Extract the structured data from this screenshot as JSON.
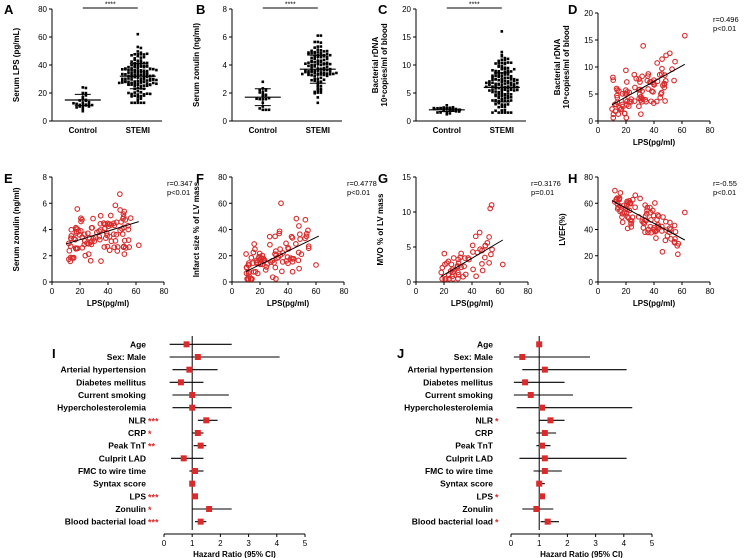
{
  "figure": {
    "colors": {
      "point": "#d92b2b",
      "line": "#000000",
      "bg": "#ffffff"
    }
  },
  "chart_data": [
    {
      "id": "A",
      "type": "scatter",
      "subtype": "dot-plot",
      "ylabel": "Serum LPS (pg/mL)",
      "ylim": [
        0,
        80
      ],
      "yticks": [
        0,
        20,
        40,
        60,
        80
      ],
      "categories": [
        "Control",
        "STEMI"
      ],
      "group_summary": [
        {
          "name": "Control",
          "n_points": 26,
          "mean": 15,
          "sd": 4,
          "min": 7,
          "max": 24
        },
        {
          "name": "STEMI",
          "n_points": 140,
          "mean": 32,
          "sd": 9,
          "min": 13,
          "max": 62
        }
      ],
      "significance": "****"
    },
    {
      "id": "B",
      "type": "scatter",
      "subtype": "dot-plot",
      "ylabel": "Serum zonulin (ng/ml)",
      "ylim": [
        0,
        8
      ],
      "yticks": [
        0,
        2,
        4,
        6,
        8
      ],
      "categories": [
        "Control",
        "STEMI"
      ],
      "group_summary": [
        {
          "name": "Control",
          "n_points": 22,
          "mean": 1.7,
          "sd": 0.6,
          "min": 0.8,
          "max": 2.8
        },
        {
          "name": "STEMI",
          "n_points": 110,
          "mean": 3.7,
          "sd": 1.0,
          "min": 1.3,
          "max": 6.1
        }
      ],
      "significance": "****"
    },
    {
      "id": "C",
      "type": "scatter",
      "subtype": "dot-plot",
      "ylabel_line1": "Bacterial rDNA",
      "ylabel_line2": "10⁶copies/ml of blood",
      "ylim": [
        0,
        20
      ],
      "yticks": [
        0,
        5,
        10,
        15,
        20
      ],
      "categories": [
        "Control",
        "STEMI"
      ],
      "group_summary": [
        {
          "name": "Control",
          "n_points": 26,
          "mean": 2.0,
          "sd": 0.3,
          "min": 1.2,
          "max": 2.8
        },
        {
          "name": "STEMI",
          "n_points": 140,
          "mean": 6.0,
          "sd": 2.6,
          "min": 1.5,
          "max": 16
        }
      ],
      "significance": "****"
    },
    {
      "id": "D",
      "type": "scatter",
      "xlabel": "LPS(pg/ml)",
      "xlim": [
        0,
        80
      ],
      "xticks": [
        0,
        20,
        40,
        60,
        80
      ],
      "ylabel_line1": "Bacterial rDNA",
      "ylabel_line2": "10⁶copies/ml of blood",
      "ylim": [
        0,
        20
      ],
      "yticks": [
        0,
        5,
        10,
        15,
        20
      ],
      "r_text": "r=0.496",
      "p_text": "p<0.01",
      "trend": {
        "x0": 10,
        "y0": 3.0,
        "x1": 62,
        "y1": 10.5
      },
      "cloud": {
        "n": 95,
        "xmin": 10,
        "xmax": 55,
        "noise": 2.4
      },
      "extra_points": [
        {
          "x": 62,
          "y": 15.8
        },
        {
          "x": 55,
          "y": 11
        }
      ]
    },
    {
      "id": "E",
      "type": "scatter",
      "xlabel": "LPS(pg/ml)",
      "xlim": [
        0,
        80
      ],
      "xticks": [
        0,
        20,
        40,
        60,
        80
      ],
      "ylabel": "Serum zonulin (ng/ml)",
      "ylim": [
        0,
        8
      ],
      "yticks": [
        0,
        2,
        4,
        6,
        8
      ],
      "r_text": "r=0.347",
      "p_text": "p<0.01",
      "trend": {
        "x0": 10,
        "y0": 2.9,
        "x1": 62,
        "y1": 4.6
      },
      "cloud": {
        "n": 110,
        "xmin": 12,
        "xmax": 58,
        "noise": 1.0
      },
      "extra_points": [
        {
          "x": 62,
          "y": 2.8
        }
      ]
    },
    {
      "id": "F",
      "type": "scatter",
      "xlabel": "LPS(pg/ml)",
      "xlim": [
        0,
        80
      ],
      "xticks": [
        0,
        20,
        40,
        60,
        80
      ],
      "ylabel": "Infarct size % of LV mass",
      "ylim": [
        0,
        80
      ],
      "yticks": [
        0,
        20,
        40,
        60,
        80
      ],
      "r_text": "r=0.4778",
      "p_text": "p<0.01",
      "trend": {
        "x0": 10,
        "y0": 8,
        "x1": 62,
        "y1": 35
      },
      "cloud": {
        "n": 95,
        "xmin": 10,
        "xmax": 55,
        "noise": 10
      },
      "extra_points": [
        {
          "x": 35,
          "y": 60
        },
        {
          "x": 60,
          "y": 13
        }
      ]
    },
    {
      "id": "G",
      "type": "scatter",
      "xlabel": "LPS(pg/ml)",
      "xlim": [
        0,
        80
      ],
      "xticks": [
        0,
        20,
        40,
        60,
        80
      ],
      "ylabel": "MVO % of LV mass",
      "ylim": [
        0,
        15
      ],
      "yticks": [
        0,
        5,
        10,
        15
      ],
      "r_text": "r=0.3176",
      "p_text": "p=0.01",
      "trend": {
        "x0": 18,
        "y0": 0.8,
        "x1": 62,
        "y1": 6.0
      },
      "cloud": {
        "n": 55,
        "xmin": 18,
        "xmax": 55,
        "noise": 1.3
      },
      "extra_points": [
        {
          "x": 53,
          "y": 10.5
        },
        {
          "x": 54,
          "y": 11
        },
        {
          "x": 62,
          "y": 2.5
        }
      ]
    },
    {
      "id": "H",
      "type": "scatter",
      "xlabel": "LPS(pg/ml)",
      "xlim": [
        0,
        80
      ],
      "xticks": [
        0,
        20,
        40,
        60,
        80
      ],
      "ylabel": "LVEF(%)",
      "ylim": [
        0,
        80
      ],
      "yticks": [
        0,
        20,
        40,
        60,
        80
      ],
      "r_text": "r=-0.55",
      "p_text": "p<0.01",
      "trend": {
        "x0": 10,
        "y0": 62,
        "x1": 62,
        "y1": 32
      },
      "cloud": {
        "n": 100,
        "xmin": 12,
        "xmax": 58,
        "noise": 7
      },
      "extra_points": [
        {
          "x": 62,
          "y": 53
        }
      ]
    },
    {
      "id": "I",
      "type": "forest",
      "xlabel": "Hazard Ratio (95% CI)",
      "xlim": [
        0,
        5
      ],
      "xticks": [
        0,
        1,
        2,
        3,
        4,
        5
      ],
      "ref": 1,
      "rows": [
        {
          "label": "Age",
          "hr": 0.8,
          "lo": 0.2,
          "hi": 2.4,
          "stars": ""
        },
        {
          "label": "Sex: Male",
          "hr": 1.2,
          "lo": 0.2,
          "hi": 4.1,
          "stars": ""
        },
        {
          "label": "Arterial hypertension",
          "hr": 0.9,
          "lo": 0.3,
          "hi": 1.9,
          "stars": ""
        },
        {
          "label": "Diabetes mellitus",
          "hr": 0.6,
          "lo": 0.2,
          "hi": 1.4,
          "stars": ""
        },
        {
          "label": "Current smoking",
          "hr": 1.0,
          "lo": 0.3,
          "hi": 2.3,
          "stars": ""
        },
        {
          "label": "Hypercholesterolemia",
          "hr": 1.0,
          "lo": 0.3,
          "hi": 2.4,
          "stars": ""
        },
        {
          "label": "NLR",
          "hr": 1.5,
          "lo": 1.2,
          "hi": 1.9,
          "stars": "***"
        },
        {
          "label": "CRP",
          "hr": 1.2,
          "lo": 1.0,
          "hi": 1.4,
          "stars": "*"
        },
        {
          "label": "Peak TnT",
          "hr": 1.3,
          "lo": 1.05,
          "hi": 1.5,
          "stars": "**"
        },
        {
          "label": "Culprit LAD",
          "hr": 0.7,
          "lo": 0.25,
          "hi": 1.4,
          "stars": ""
        },
        {
          "label": "FMC to wire time",
          "hr": 1.1,
          "lo": 0.9,
          "hi": 1.4,
          "stars": ""
        },
        {
          "label": "Syntax score",
          "hr": 1.0,
          "lo": 0.95,
          "hi": 1.1,
          "stars": ""
        },
        {
          "label": "LPS",
          "hr": 1.1,
          "lo": 1.05,
          "hi": 1.2,
          "stars": "***"
        },
        {
          "label": "Zonulin",
          "hr": 1.6,
          "lo": 1.0,
          "hi": 2.4,
          "stars": "*"
        },
        {
          "label": "Blood bacterial load",
          "hr": 1.3,
          "lo": 1.1,
          "hi": 1.5,
          "stars": "***"
        }
      ]
    },
    {
      "id": "J",
      "type": "forest",
      "xlabel": "Hazard Ratio (95% CI)",
      "xlim": [
        0,
        5
      ],
      "xticks": [
        0,
        1,
        2,
        3,
        4,
        5
      ],
      "ref": 1,
      "rows": [
        {
          "label": "Age",
          "hr": 1.0,
          "lo": 0.95,
          "hi": 1.1,
          "stars": ""
        },
        {
          "label": "Sex: Male",
          "hr": 0.4,
          "lo": 0.1,
          "hi": 2.8,
          "stars": ""
        },
        {
          "label": "Arterial hypertension",
          "hr": 1.2,
          "lo": 0.4,
          "hi": 4.1,
          "stars": ""
        },
        {
          "label": "Diabetes mellitus",
          "hr": 0.5,
          "lo": 0.1,
          "hi": 1.9,
          "stars": ""
        },
        {
          "label": "Current smoking",
          "hr": 0.7,
          "lo": 0.1,
          "hi": 2.2,
          "stars": ""
        },
        {
          "label": "Hypercholesterolemia",
          "hr": 1.1,
          "lo": 0.2,
          "hi": 4.3,
          "stars": ""
        },
        {
          "label": "NLR",
          "hr": 1.4,
          "lo": 1.0,
          "hi": 1.9,
          "stars": "*"
        },
        {
          "label": "CRP",
          "hr": 1.2,
          "lo": 0.9,
          "hi": 1.6,
          "stars": ""
        },
        {
          "label": "Peak TnT",
          "hr": 1.1,
          "lo": 0.9,
          "hi": 1.4,
          "stars": ""
        },
        {
          "label": "Culprit LAD",
          "hr": 1.2,
          "lo": 0.3,
          "hi": 4.1,
          "stars": ""
        },
        {
          "label": "FMC to wire time",
          "hr": 1.2,
          "lo": 0.8,
          "hi": 1.8,
          "stars": ""
        },
        {
          "label": "Syntax score",
          "hr": 1.0,
          "lo": 0.9,
          "hi": 1.2,
          "stars": ""
        },
        {
          "label": "LPS",
          "hr": 1.1,
          "lo": 1.0,
          "hi": 1.2,
          "stars": "*"
        },
        {
          "label": "Zonulin",
          "hr": 0.9,
          "lo": 0.4,
          "hi": 1.5,
          "stars": ""
        },
        {
          "label": "Blood bacterial load",
          "hr": 1.3,
          "lo": 1.05,
          "hi": 1.7,
          "stars": "*"
        }
      ]
    }
  ]
}
